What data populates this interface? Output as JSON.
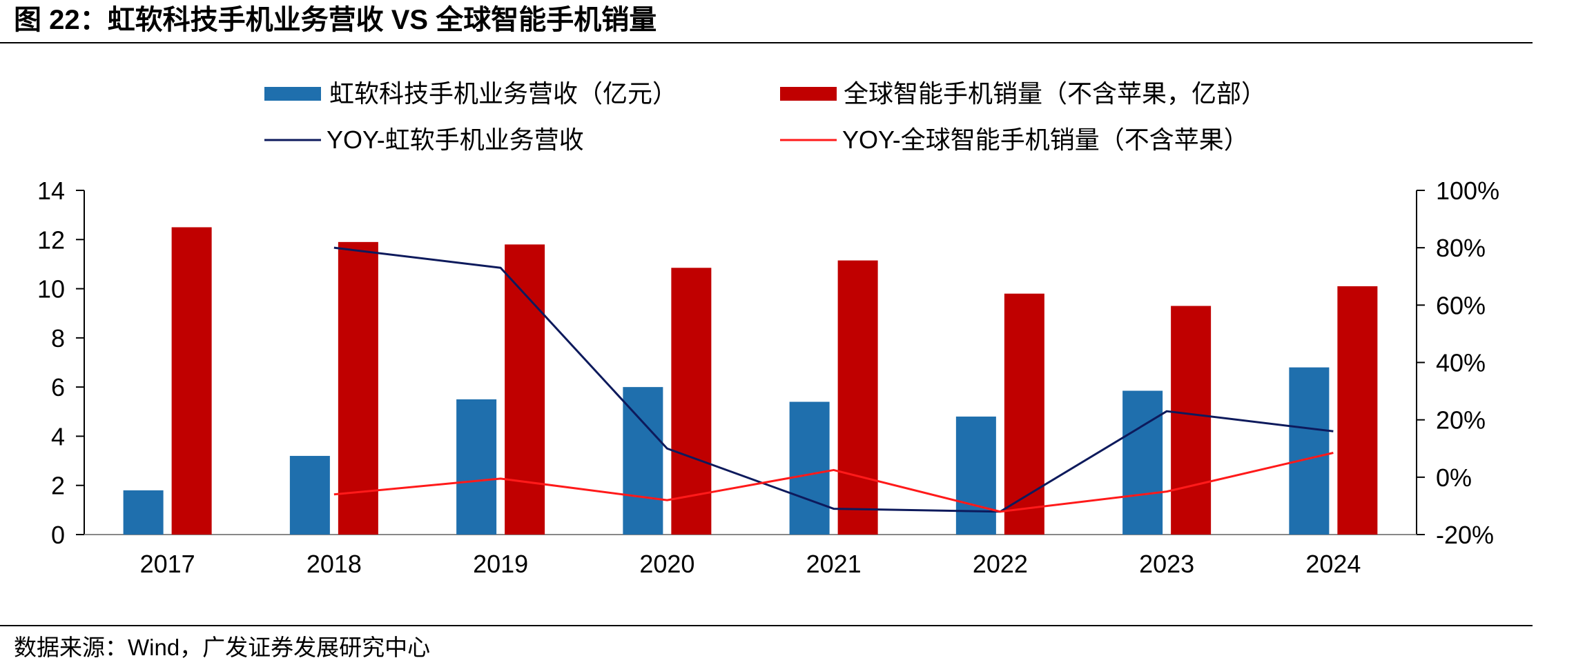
{
  "figure": {
    "title": "图 22：虹软科技手机业务营收 VS 全球智能手机销量",
    "source": "数据来源：Wind，广发证券发展研究中心"
  },
  "colors": {
    "bar_revenue": "#1f6fad",
    "bar_shipments": "#c00000",
    "line_revenue_yoy": "#0d1a5c",
    "line_shipments_yoy": "#ff1a1a"
  },
  "chart_data": {
    "type": "bar",
    "categories": [
      "2017",
      "2018",
      "2019",
      "2020",
      "2021",
      "2022",
      "2023",
      "2024"
    ],
    "series": [
      {
        "name": "虹软科技手机业务营收（亿元）",
        "kind": "bar",
        "axis": "left",
        "values": [
          1.8,
          3.2,
          5.5,
          6.0,
          5.4,
          4.8,
          5.85,
          6.8
        ]
      },
      {
        "name": "全球智能手机销量（不含苹果，亿部）",
        "kind": "bar",
        "axis": "left",
        "values": [
          12.5,
          11.9,
          11.8,
          10.85,
          11.15,
          9.8,
          9.3,
          10.1
        ]
      },
      {
        "name": "YOY-虹软手机业务营收",
        "kind": "line",
        "axis": "right",
        "values": [
          null,
          80,
          73,
          10,
          -11,
          -12,
          23,
          16
        ]
      },
      {
        "name": "YOY-全球智能手机销量（不含苹果）",
        "kind": "line",
        "axis": "right",
        "values": [
          null,
          -6,
          -0.5,
          -8,
          2.5,
          -12,
          -5,
          8.5
        ]
      }
    ],
    "y_left": {
      "min": 0,
      "max": 14,
      "ticks": [
        "0",
        "2",
        "4",
        "6",
        "8",
        "10",
        "12",
        "14"
      ]
    },
    "y_right": {
      "min": -20,
      "max": 100,
      "unit": "%",
      "ticks": [
        "-20%",
        "0%",
        "20%",
        "40%",
        "60%",
        "80%",
        "100%"
      ]
    },
    "legend_position": "top",
    "grid": false
  }
}
